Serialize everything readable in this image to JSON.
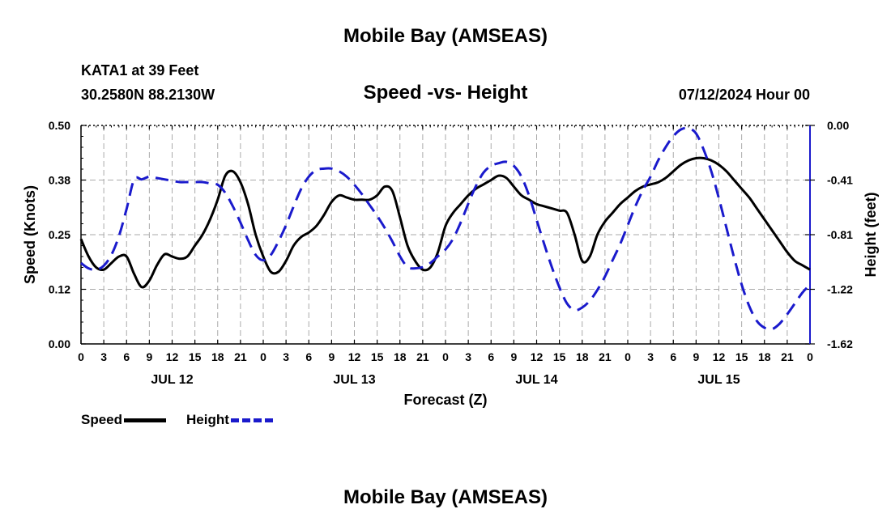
{
  "header": {
    "title": "Mobile Bay (AMSEAS)",
    "station": "KATA1 at 39 Feet",
    "coords": "30.2580N  88.2130W",
    "subtitle": "Speed -vs- Height",
    "datetime": "07/12/2024 Hour 00"
  },
  "footer": {
    "title": "Mobile Bay (AMSEAS)"
  },
  "legend": {
    "speed_label": "Speed",
    "height_label": "Height"
  },
  "colors": {
    "speed": "#000000",
    "height": "#1a1acc",
    "grid": "#aaaaaa"
  },
  "chart_data": {
    "type": "line",
    "title": "Speed -vs- Height",
    "xlabel": "Forecast (Z)",
    "ylabel": "Speed (Knots)",
    "y2label": "Height (feet)",
    "x_range_hours": [
      0,
      96
    ],
    "ylim": [
      0.0,
      0.5
    ],
    "y2lim": [
      -1.62,
      0.0
    ],
    "x_tick_labels": [
      "0",
      "3",
      "6",
      "9",
      "12",
      "15",
      "18",
      "21",
      "0",
      "3",
      "6",
      "9",
      "12",
      "15",
      "18",
      "21",
      "0",
      "3",
      "6",
      "9",
      "12",
      "15",
      "18",
      "21",
      "0",
      "3",
      "6",
      "9",
      "12",
      "15",
      "18",
      "21",
      "0"
    ],
    "day_labels": [
      {
        "label": "JUL 12",
        "hour": 12
      },
      {
        "label": "JUL 13",
        "hour": 36
      },
      {
        "label": "JUL 14",
        "hour": 60
      },
      {
        "label": "JUL 15",
        "hour": 84
      }
    ],
    "y_tick_labels": [
      "0.50",
      "0.38",
      "0.25",
      "0.12",
      "0.00"
    ],
    "y_tick_values": [
      0.5,
      0.375,
      0.25,
      0.125,
      0.0
    ],
    "y2_tick_labels": [
      "0.00",
      "-0.41",
      "-0.81",
      "-1.22",
      "-1.62"
    ],
    "y2_tick_values": [
      0.0,
      -0.405,
      -0.81,
      -1.215,
      -1.62
    ],
    "series": [
      {
        "name": "Speed",
        "axis": "left",
        "style": "solid",
        "x": [
          0,
          1,
          2,
          3,
          4,
          5,
          6,
          7,
          8,
          9,
          10,
          11,
          12,
          13,
          14,
          15,
          16,
          17,
          18,
          19,
          20,
          21,
          22,
          23,
          24,
          25,
          26,
          27,
          28,
          29,
          30,
          31,
          32,
          33,
          34,
          35,
          36,
          37,
          38,
          39,
          40,
          41,
          42,
          43,
          44,
          45,
          46,
          47,
          48,
          49,
          50,
          51,
          52,
          53,
          54,
          55,
          56,
          57,
          58,
          59,
          60,
          61,
          62,
          63,
          64,
          65,
          66,
          67,
          68,
          69,
          70,
          71,
          72,
          73,
          74,
          75,
          76,
          77,
          78,
          79,
          80,
          81,
          82,
          83,
          84,
          85,
          86,
          87,
          88,
          89,
          90,
          91,
          92,
          93,
          94,
          95,
          96
        ],
        "values": [
          0.24,
          0.2,
          0.175,
          0.17,
          0.185,
          0.2,
          0.2,
          0.16,
          0.13,
          0.145,
          0.18,
          0.205,
          0.2,
          0.195,
          0.2,
          0.225,
          0.25,
          0.285,
          0.33,
          0.385,
          0.395,
          0.37,
          0.32,
          0.25,
          0.2,
          0.165,
          0.165,
          0.19,
          0.225,
          0.245,
          0.255,
          0.27,
          0.295,
          0.325,
          0.34,
          0.335,
          0.33,
          0.33,
          0.33,
          0.34,
          0.36,
          0.35,
          0.29,
          0.225,
          0.19,
          0.17,
          0.175,
          0.21,
          0.27,
          0.3,
          0.32,
          0.34,
          0.355,
          0.365,
          0.375,
          0.385,
          0.38,
          0.36,
          0.34,
          0.33,
          0.32,
          0.315,
          0.31,
          0.305,
          0.3,
          0.25,
          0.19,
          0.2,
          0.25,
          0.28,
          0.3,
          0.32,
          0.335,
          0.35,
          0.36,
          0.365,
          0.37,
          0.38,
          0.395,
          0.41,
          0.42,
          0.425,
          0.425,
          0.42,
          0.41,
          0.395,
          0.375,
          0.355,
          0.335,
          0.31,
          0.285,
          0.26,
          0.235,
          0.21,
          0.19,
          0.18,
          0.17
        ]
      },
      {
        "name": "Height",
        "axis": "right",
        "style": "dashed",
        "x": [
          0,
          1,
          2,
          3,
          4,
          5,
          6,
          7,
          8,
          9,
          10,
          11,
          12,
          13,
          14,
          15,
          16,
          17,
          18,
          19,
          20,
          21,
          22,
          23,
          24,
          25,
          26,
          27,
          28,
          29,
          30,
          31,
          32,
          33,
          34,
          35,
          36,
          37,
          38,
          39,
          40,
          41,
          42,
          43,
          44,
          45,
          46,
          47,
          48,
          49,
          50,
          51,
          52,
          53,
          54,
          55,
          56,
          57,
          58,
          59,
          60,
          61,
          62,
          63,
          64,
          65,
          66,
          67,
          68,
          69,
          70,
          71,
          72,
          73,
          74,
          75,
          76,
          77,
          78,
          79,
          80,
          81,
          82,
          83,
          84,
          85,
          86,
          87,
          88,
          89,
          90,
          91,
          92,
          93,
          94,
          95,
          96
        ],
        "values": [
          -1.02,
          -1.06,
          -1.07,
          -1.04,
          -0.96,
          -0.82,
          -0.62,
          -0.4,
          -0.4,
          -0.38,
          -0.39,
          -0.4,
          -0.41,
          -0.42,
          -0.42,
          -0.42,
          -0.42,
          -0.43,
          -0.44,
          -0.5,
          -0.6,
          -0.72,
          -0.85,
          -0.96,
          -1.0,
          -0.96,
          -0.86,
          -0.74,
          -0.6,
          -0.47,
          -0.38,
          -0.33,
          -0.32,
          -0.32,
          -0.34,
          -0.38,
          -0.44,
          -0.51,
          -0.59,
          -0.67,
          -0.76,
          -0.86,
          -0.97,
          -1.05,
          -1.06,
          -1.05,
          -1.02,
          -0.97,
          -0.92,
          -0.84,
          -0.72,
          -0.58,
          -0.45,
          -0.35,
          -0.3,
          -0.28,
          -0.27,
          -0.3,
          -0.38,
          -0.52,
          -0.7,
          -0.88,
          -1.05,
          -1.2,
          -1.32,
          -1.37,
          -1.35,
          -1.3,
          -1.22,
          -1.12,
          -1.0,
          -0.88,
          -0.74,
          -0.6,
          -0.48,
          -0.38,
          -0.26,
          -0.16,
          -0.08,
          -0.03,
          -0.02,
          -0.06,
          -0.18,
          -0.34,
          -0.54,
          -0.76,
          -0.98,
          -1.18,
          -1.34,
          -1.45,
          -1.5,
          -1.51,
          -1.47,
          -1.4,
          -1.32,
          -1.24,
          -1.18
        ]
      }
    ],
    "legend_position": "bottom-left"
  }
}
